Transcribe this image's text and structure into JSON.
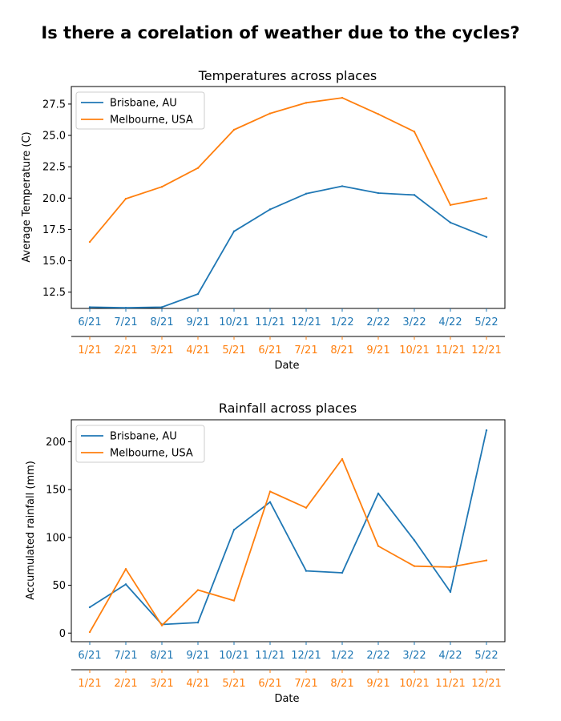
{
  "figure": {
    "title": "Is there a corelation of weather due to the cycles?"
  },
  "colors": {
    "series_1": "#1f77b4",
    "series_2": "#ff7f0e",
    "axis": "#000000",
    "legend_border": "#cccccc"
  },
  "chart_data": [
    {
      "type": "line",
      "title": "Temperatures across places",
      "ylabel": "Average Temperature (C)",
      "xlabel": "Date",
      "ylim": [
        11.2,
        28.9
      ],
      "yticks": [
        12.5,
        15.0,
        17.5,
        20.0,
        22.5,
        25.0,
        27.5
      ],
      "grid": false,
      "legend_position": "top-left",
      "x_primary_ticks": [
        "6/21",
        "7/21",
        "8/21",
        "9/21",
        "10/21",
        "11/21",
        "12/21",
        "1/22",
        "2/22",
        "3/22",
        "4/22",
        "5/22"
      ],
      "x_secondary_ticks": [
        "1/21",
        "2/21",
        "3/21",
        "4/21",
        "5/21",
        "6/21",
        "7/21",
        "8/21",
        "9/21",
        "10/21",
        "11/21",
        "12/21"
      ],
      "series": [
        {
          "name": "Brisbane, AU",
          "color": "#1f77b4",
          "x_axis": "primary",
          "values": [
            11.3,
            11.25,
            11.3,
            12.35,
            17.35,
            19.1,
            20.35,
            20.95,
            20.4,
            20.25,
            18.05,
            16.9
          ]
        },
        {
          "name": "Melbourne, USA",
          "color": "#ff7f0e",
          "x_axis": "secondary",
          "values": [
            16.5,
            19.95,
            20.9,
            22.4,
            25.45,
            26.75,
            27.6,
            28.0,
            26.7,
            25.3,
            19.45,
            20.0
          ]
        }
      ]
    },
    {
      "type": "line",
      "title": "Rainfall across places",
      "ylabel": "Accumulated rainfall (mm)",
      "xlabel": "Date",
      "ylim": [
        -9,
        223
      ],
      "yticks": [
        0,
        50,
        100,
        150,
        200
      ],
      "grid": false,
      "legend_position": "top-left",
      "x_primary_ticks": [
        "6/21",
        "7/21",
        "8/21",
        "9/21",
        "10/21",
        "11/21",
        "12/21",
        "1/22",
        "2/22",
        "3/22",
        "4/22",
        "5/22"
      ],
      "x_secondary_ticks": [
        "1/21",
        "2/21",
        "3/21",
        "4/21",
        "5/21",
        "6/21",
        "7/21",
        "8/21",
        "9/21",
        "10/21",
        "11/21",
        "12/21"
      ],
      "series": [
        {
          "name": "Brisbane, AU",
          "color": "#1f77b4",
          "x_axis": "primary",
          "values": [
            27,
            51,
            9,
            11,
            108,
            137,
            65,
            63,
            146,
            97,
            43,
            212
          ]
        },
        {
          "name": "Melbourne, USA",
          "color": "#ff7f0e",
          "x_axis": "secondary",
          "values": [
            1,
            67,
            8,
            45,
            34,
            148,
            131,
            182,
            91,
            70,
            69,
            76
          ]
        }
      ]
    }
  ]
}
